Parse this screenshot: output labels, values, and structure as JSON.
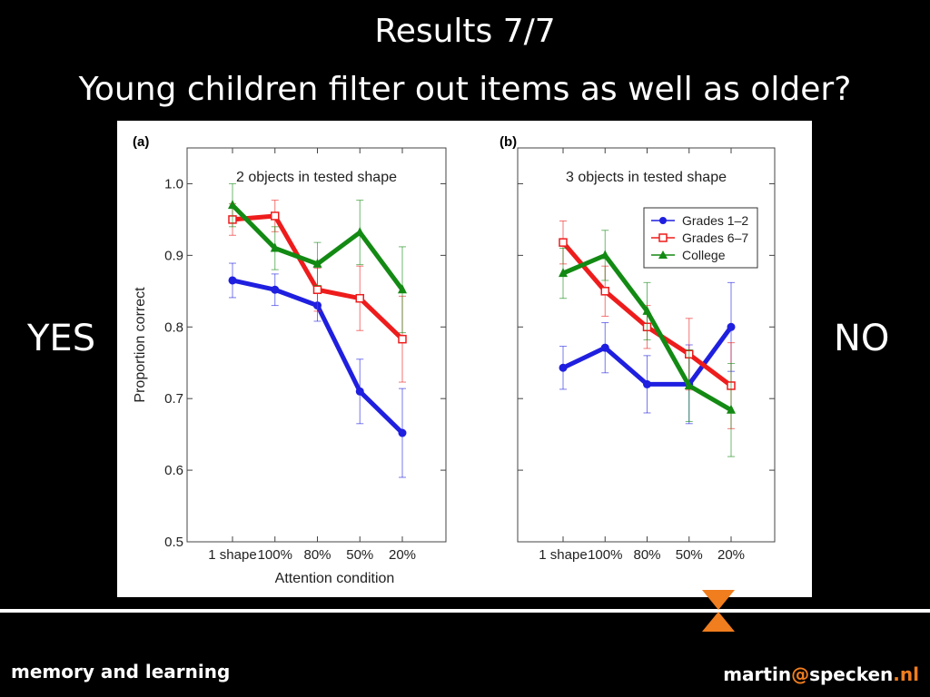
{
  "slide": {
    "title_line1": "Results 7/7",
    "title_line2": "Young children filter out items as well as older?",
    "left_label": "YES",
    "right_label": "NO"
  },
  "footer": {
    "left": "memory and learning",
    "email_user": "martin",
    "email_at": "@",
    "email_domain": "specken",
    "email_dot": ".",
    "email_tld": "nl"
  },
  "colors": {
    "Grades 1–2": "#1f1fe0",
    "Grades 6–7": "#ee1c1c",
    "College": "#138a13",
    "accent": "#f07d1e"
  },
  "chart_data": [
    {
      "type": "line",
      "panel_label": "(a)",
      "title": "2 objects in tested shape",
      "xlabel": "Attention condition",
      "ylabel": "Proportion correct",
      "categories": [
        "1 shape",
        "100%",
        "80%",
        "50%",
        "20%"
      ],
      "ylim": [
        0.5,
        1.05
      ],
      "yticks": [
        "0.5",
        "0.6",
        "0.7",
        "0.8",
        "0.9",
        "1.0"
      ],
      "series": [
        {
          "name": "Grades 1–2",
          "values": [
            0.865,
            0.852,
            0.83,
            0.71,
            0.652
          ],
          "err": [
            0.024,
            0.022,
            0.022,
            0.045,
            0.062
          ]
        },
        {
          "name": "Grades 6–7",
          "values": [
            0.95,
            0.955,
            0.852,
            0.84,
            0.783
          ],
          "err": [
            0.022,
            0.022,
            0.03,
            0.045,
            0.06
          ]
        },
        {
          "name": "College",
          "values": [
            0.97,
            0.91,
            0.888,
            0.932,
            0.852
          ],
          "err": [
            0.03,
            0.03,
            0.03,
            0.045,
            0.06
          ]
        }
      ]
    },
    {
      "type": "line",
      "panel_label": "(b)",
      "title": "3 objects in tested shape",
      "categories": [
        "1 shape",
        "100%",
        "80%",
        "50%",
        "20%"
      ],
      "ylim": [
        0.5,
        1.05
      ],
      "legend": "top-right",
      "series": [
        {
          "name": "Grades 1–2",
          "values": [
            0.743,
            0.771,
            0.72,
            0.72,
            0.8
          ],
          "err": [
            0.03,
            0.035,
            0.04,
            0.055,
            0.062
          ]
        },
        {
          "name": "Grades 6–7",
          "values": [
            0.918,
            0.85,
            0.8,
            0.762,
            0.718
          ],
          "err": [
            0.03,
            0.035,
            0.03,
            0.05,
            0.06
          ]
        },
        {
          "name": "College",
          "values": [
            0.875,
            0.9,
            0.822,
            0.718,
            0.684
          ],
          "err": [
            0.035,
            0.035,
            0.04,
            0.05,
            0.065
          ]
        }
      ]
    }
  ]
}
